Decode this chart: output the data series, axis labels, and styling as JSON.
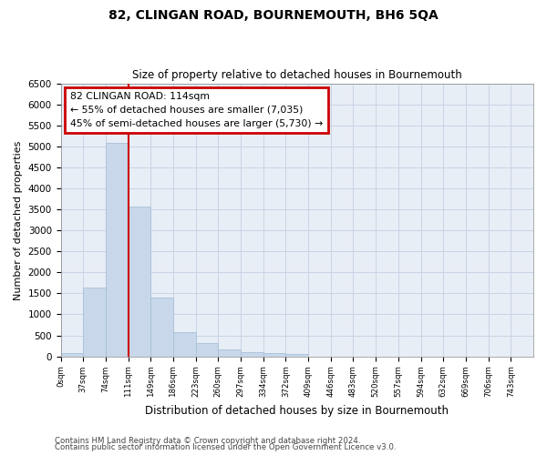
{
  "title": "82, CLINGAN ROAD, BOURNEMOUTH, BH6 5QA",
  "subtitle": "Size of property relative to detached houses in Bournemouth",
  "xlabel": "Distribution of detached houses by size in Bournemouth",
  "ylabel": "Number of detached properties",
  "footer_line1": "Contains HM Land Registry data © Crown copyright and database right 2024.",
  "footer_line2": "Contains public sector information licensed under the Open Government Licence v3.0.",
  "annotation_title": "82 CLINGAN ROAD: 114sqm",
  "annotation_line2": "← 55% of detached houses are smaller (7,035)",
  "annotation_line3": "45% of semi-detached houses are larger (5,730) →",
  "bar_color": "#c8d8ea",
  "bar_edge_color": "#a8c0d8",
  "highlight_color": "#cc0000",
  "grid_color": "#c8d4e4",
  "background_color": "#e8eef6",
  "categories": [
    "0sqm",
    "37sqm",
    "74sqm",
    "111sqm",
    "149sqm",
    "186sqm",
    "223sqm",
    "260sqm",
    "297sqm",
    "334sqm",
    "372sqm",
    "409sqm",
    "446sqm",
    "483sqm",
    "520sqm",
    "557sqm",
    "594sqm",
    "632sqm",
    "669sqm",
    "706sqm",
    "743sqm"
  ],
  "bin_edges": [
    0,
    37,
    74,
    111,
    148,
    185,
    222,
    259,
    296,
    333,
    370,
    407,
    444,
    481,
    518,
    555,
    592,
    629,
    666,
    703,
    740,
    777
  ],
  "values": [
    70,
    1640,
    5080,
    3580,
    1400,
    580,
    310,
    160,
    110,
    75,
    50,
    0,
    0,
    0,
    0,
    0,
    0,
    0,
    0,
    0,
    0
  ],
  "ylim": [
    0,
    6500
  ],
  "yticks": [
    0,
    500,
    1000,
    1500,
    2000,
    2500,
    3000,
    3500,
    4000,
    4500,
    5000,
    5500,
    6000,
    6500
  ],
  "vline_x": 111,
  "property_size_sqm": 114
}
